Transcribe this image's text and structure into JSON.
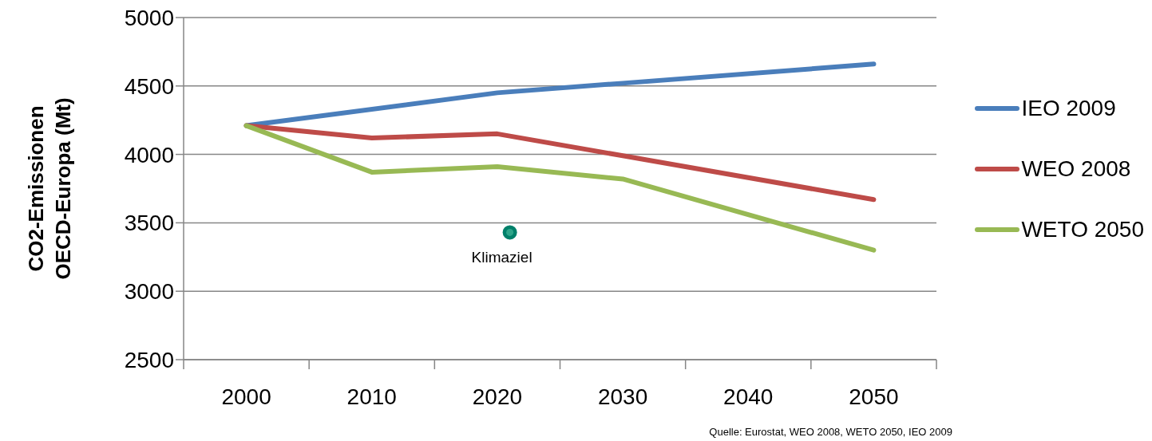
{
  "chart_data": {
    "type": "line",
    "ylabel": "CO2-Emissionen OECD-Europa (Mt)",
    "xlim": [
      1995,
      2055
    ],
    "xticks": [
      {
        "value": 1995,
        "label": null
      },
      2000,
      {
        "value": 2005,
        "label": null
      },
      2010,
      {
        "value": 2015,
        "label": null
      },
      2020,
      {
        "value": 2025,
        "label": null
      },
      2030,
      {
        "value": 2035,
        "label": null
      },
      2040,
      {
        "value": 2045,
        "label": null
      },
      2050,
      {
        "value": 2055,
        "label": null
      }
    ],
    "ylim": [
      2500,
      5000
    ],
    "yticks": [
      2500,
      3000,
      3500,
      4000,
      4500,
      5000
    ],
    "grid": "y",
    "legend": "right",
    "marker": "none",
    "line_style": "solid",
    "series": [
      {
        "name": "IEO 2009",
        "color": "#4a7ebb",
        "x": [
          2000,
          2020,
          2030,
          2050
        ],
        "values": [
          4210,
          4450,
          4520,
          4660
        ]
      },
      {
        "name": "WEO 2008",
        "color": "#be4b48",
        "x": [
          2000,
          2010,
          2020,
          2030,
          2050
        ],
        "values": [
          4210,
          4120,
          4150,
          3990,
          3670
        ]
      },
      {
        "name": "WETO 2050",
        "color": "#98b954",
        "x": [
          2000,
          2010,
          2020,
          2030,
          2050
        ],
        "values": [
          4210,
          3870,
          3910,
          3820,
          3300
        ]
      },
      {
        "type": "scatter",
        "color": "#00806a",
        "marker": "circle",
        "x": [
          2021
        ],
        "values": [
          3430
        ]
      }
    ],
    "annotations": [
      {
        "text": "Klimaziel",
        "x": 2021,
        "y": 3430
      },
      "Quelle:  Eurostat, WEO 2008, WETO 2050, IEO 2009"
    ]
  }
}
